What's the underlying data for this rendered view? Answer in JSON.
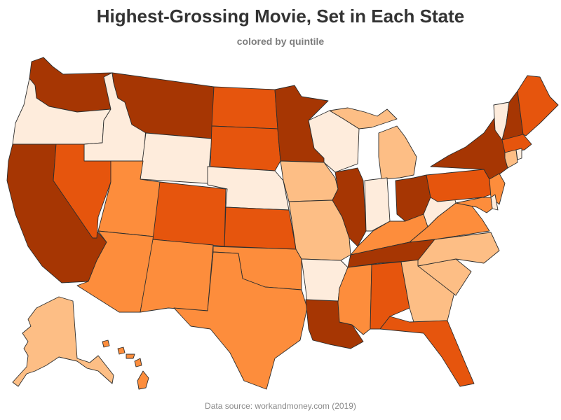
{
  "title": "Highest-Grossing Movie, Set in Each State",
  "subtitle": "colored by quintile",
  "source": "Data source: workandmoney.com (2019)",
  "colors": {
    "q1": "#feecdc",
    "q2": "#fdbe85",
    "q3": "#fd8d3c",
    "q4": "#e6550d",
    "q5": "#a63603",
    "stroke": "#2e2e2e"
  },
  "state_quintiles": {
    "WA": 5,
    "OR": 1,
    "CA": 5,
    "ID": 1,
    "NV": 4,
    "MT": 5,
    "WY": 1,
    "UT": 3,
    "AZ": 3,
    "CO": 4,
    "NM": 3,
    "ND": 4,
    "SD": 4,
    "NE": 1,
    "KS": 4,
    "OK": 3,
    "TX": 3,
    "MN": 5,
    "IA": 2,
    "MO": 2,
    "AR": 1,
    "LA": 5,
    "WI": 1,
    "IL": 5,
    "MI": 2,
    "IN": 1,
    "OH": 5,
    "KY": 3,
    "TN": 5,
    "MS": 3,
    "AL": 4,
    "FL": 4,
    "GA": 2,
    "SC": 2,
    "NC": 2,
    "VA": 3,
    "WV": 1,
    "PA": 4,
    "NY": 5,
    "VT": 1,
    "NH": 5,
    "ME": 4,
    "MA": 4,
    "RI": 1,
    "CT": 2,
    "NJ": 3,
    "DE": 1,
    "MD": 3,
    "AK": 2,
    "HI": 3
  }
}
